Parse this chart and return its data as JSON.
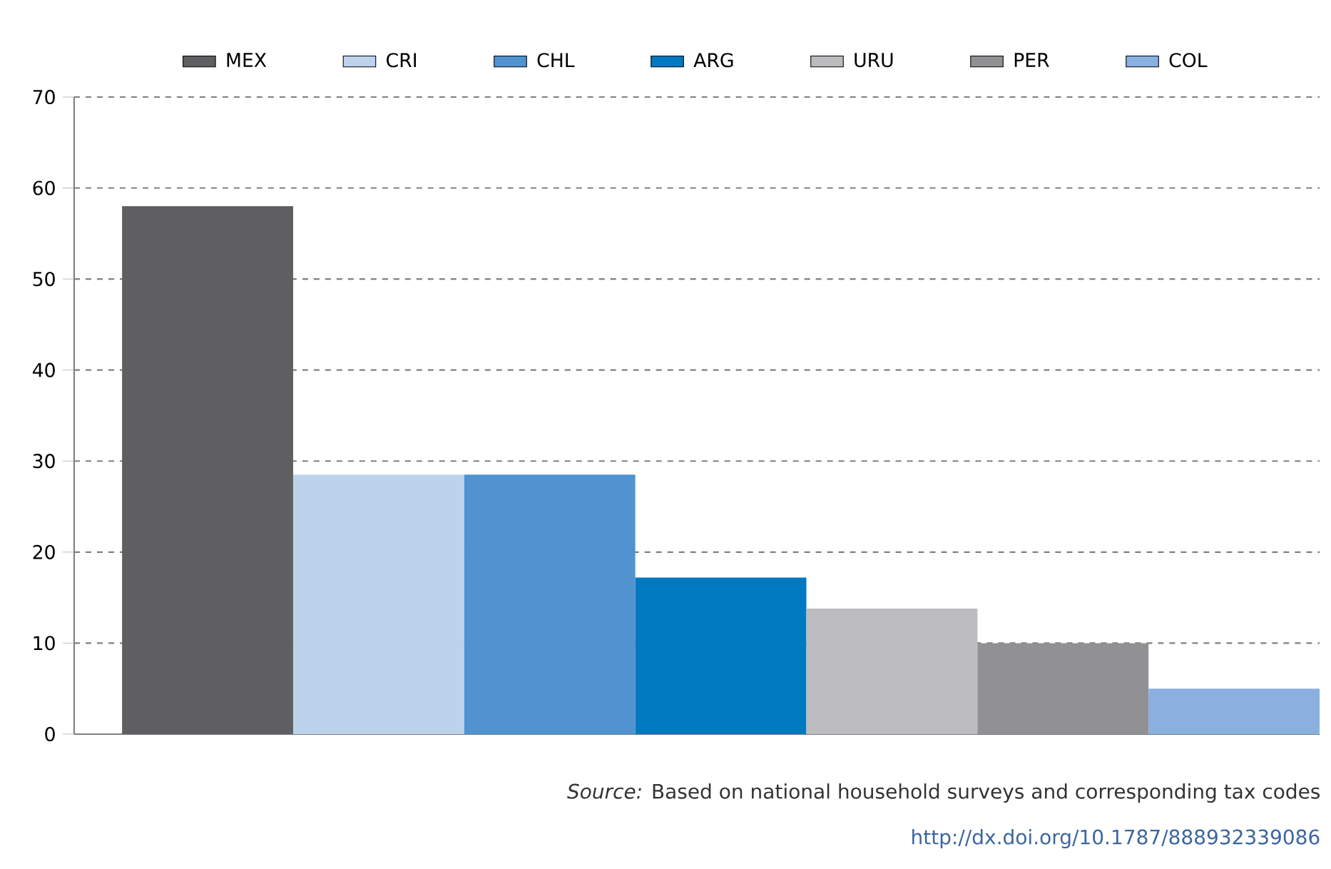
{
  "chart_data": {
    "type": "bar",
    "categories": [
      null
    ],
    "series": [
      {
        "name": "MEX",
        "color": "#5f5e60",
        "values": [
          58
        ]
      },
      {
        "name": "CRI",
        "color": "#bdd3ec",
        "values": [
          28.5
        ]
      },
      {
        "name": "CHL",
        "color": "#5192d0",
        "values": [
          28.5
        ]
      },
      {
        "name": "ARG",
        "color": "#0079c1",
        "values": [
          17.2
        ]
      },
      {
        "name": "URU",
        "color": "#bcbcbe",
        "values": [
          13.8
        ]
      },
      {
        "name": "PER",
        "color": "#919194",
        "values": [
          10
        ]
      },
      {
        "name": "COL",
        "color": "#8ab0e0",
        "values": [
          5
        ]
      }
    ],
    "ylim": [
      0,
      70
    ],
    "yticks": [
      0,
      10,
      20,
      30,
      40,
      50,
      60,
      70
    ],
    "grid": "y",
    "legend": "top",
    "annotations": [
      "*Source:* Based on national household surveys and corresponding tax codes",
      "http://dx.doi.org/10.1787/888932339086"
    ]
  }
}
